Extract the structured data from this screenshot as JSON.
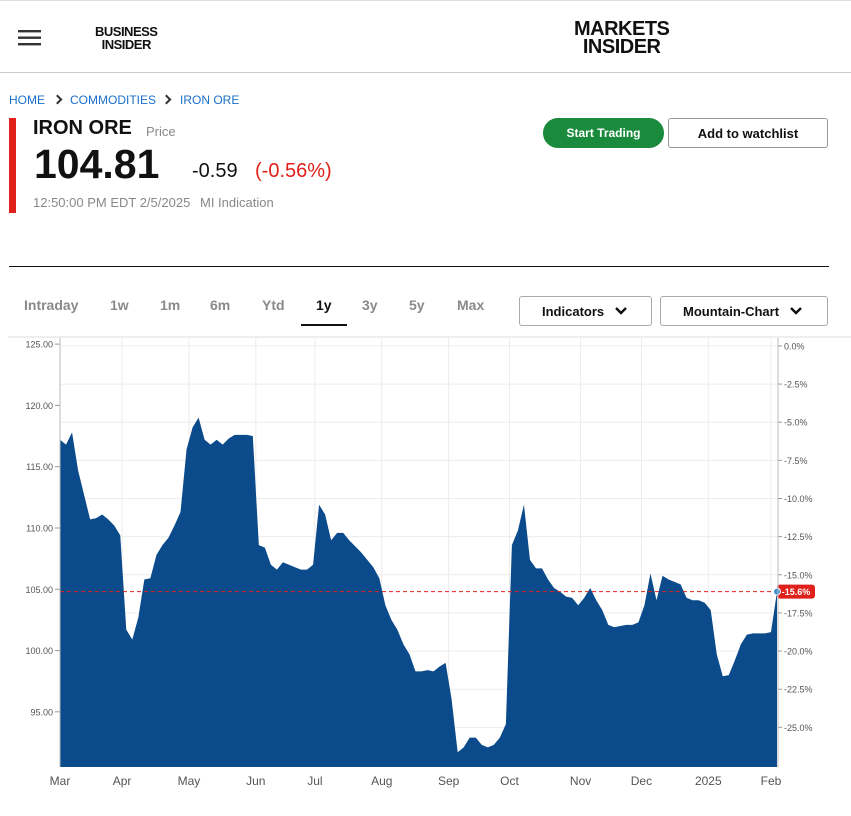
{
  "header": {
    "brand_left": [
      "BUSINESS",
      "INSIDER"
    ],
    "brand_right": [
      "MARKETS",
      "INSIDER"
    ]
  },
  "breadcrumb": [
    "HOME",
    "COMMODITIES",
    "IRON ORE"
  ],
  "quote": {
    "name": "IRON ORE",
    "label": "Price",
    "price": "104.81",
    "change": "-0.59",
    "change_percent": "(-0.56%)",
    "timestamp": "12:50:00 PM EDT 2/5/2025",
    "source": "MI Indication"
  },
  "buttons": [
    "Start Trading",
    "Add to watchlist"
  ],
  "tabs": [
    "Intraday",
    "1w",
    "1m",
    "6m",
    "Ytd",
    "1y",
    "3y",
    "5y",
    "Max"
  ],
  "active_tab": 5,
  "chart_controls": [
    "Indicators",
    "Mountain-Chart"
  ],
  "chart_data": {
    "type": "area",
    "series": [
      {
        "color": "#0b4a8b",
        "values": [
          117.2,
          116.8,
          117.8,
          114.7,
          112.7,
          110.7,
          110.8,
          111.1,
          110.7,
          110.2,
          109.4,
          101.7,
          100.9,
          102.7,
          105.8,
          105.9,
          107.8,
          108.6,
          109.2,
          110.2,
          111.3,
          116.4,
          118.2,
          119.0,
          117.2,
          116.8,
          117.2,
          116.8,
          117.3,
          117.6,
          117.6,
          117.6,
          117.5,
          108.6,
          108.4,
          107.0,
          106.6,
          107.2,
          107.0,
          106.8,
          106.6,
          106.6,
          107.0,
          111.9,
          111.1,
          109.0,
          109.6,
          109.6,
          109.0,
          108.5,
          108.0,
          107.4,
          106.8,
          105.9,
          103.7,
          102.5,
          101.7,
          100.5,
          99.7,
          98.3,
          98.3,
          98.4,
          98.3,
          98.7,
          99.0,
          96.0,
          91.7,
          92.1,
          92.9,
          92.9,
          92.3,
          92.1,
          92.3,
          92.9,
          94.0,
          108.6,
          109.8,
          111.9,
          107.4,
          106.7,
          106.7,
          105.8,
          105.1,
          104.8,
          104.4,
          104.3,
          103.7,
          104.3,
          105.1,
          104.1,
          103.3,
          102.1,
          101.9,
          102.0,
          102.1,
          102.1,
          102.3,
          103.7,
          106.3,
          104.1,
          106.1,
          105.8,
          105.6,
          105.4,
          104.3,
          104.1,
          104.1,
          103.9,
          103.3,
          99.7,
          97.9,
          98.0,
          99.2,
          100.5,
          101.3,
          101.4,
          101.4,
          101.4,
          101.5,
          104.81
        ]
      }
    ],
    "xlim": [
      0,
      119
    ],
    "xticks": [
      {
        "value": 0,
        "label": "Mar"
      },
      {
        "value": 10.3,
        "label": "Apr"
      },
      {
        "value": 21.4,
        "label": "May"
      },
      {
        "value": 32.5,
        "label": "Jun"
      },
      {
        "value": 42.3,
        "label": "Jul"
      },
      {
        "value": 53.4,
        "label": "Aug"
      },
      {
        "value": 64.5,
        "label": "Sep"
      },
      {
        "value": 74.6,
        "label": "Oct"
      },
      {
        "value": 86.4,
        "label": "Nov"
      },
      {
        "value": 96.5,
        "label": "Dec"
      },
      {
        "value": 107.6,
        "label": "2025"
      },
      {
        "value": 118,
        "label": "Feb"
      }
    ],
    "ylim": [
      90.5,
      125.5
    ],
    "yticks": [
      {
        "value": 95,
        "label": "95.00"
      },
      {
        "value": 100,
        "label": "100.00"
      },
      {
        "value": 105,
        "label": "105.00"
      },
      {
        "value": 110,
        "label": "110.00"
      },
      {
        "value": 115,
        "label": "115.00"
      },
      {
        "value": 120,
        "label": "120.00"
      },
      {
        "value": 125,
        "label": "125.00"
      }
    ],
    "y2lim": [
      -27.6,
      0.52
    ],
    "y2ticks": [
      {
        "value": 0,
        "label": "0.0%"
      },
      {
        "value": -2.5,
        "label": "-2.5%"
      },
      {
        "value": -5,
        "label": "-5.0%"
      },
      {
        "value": -7.5,
        "label": "-7.5%"
      },
      {
        "value": -10,
        "label": "-10.0%"
      },
      {
        "value": -12.5,
        "label": "-12.5%"
      },
      {
        "value": -15,
        "label": "-15.0%"
      },
      {
        "value": -17.5,
        "label": "-17.5%"
      },
      {
        "value": -20,
        "label": "-20.0%"
      },
      {
        "value": -22.5,
        "label": "-22.5%"
      },
      {
        "value": -25,
        "label": "-25.0%"
      }
    ],
    "grid": true,
    "last_value_label": "-15.6%",
    "reference_color": "#e0201b"
  }
}
